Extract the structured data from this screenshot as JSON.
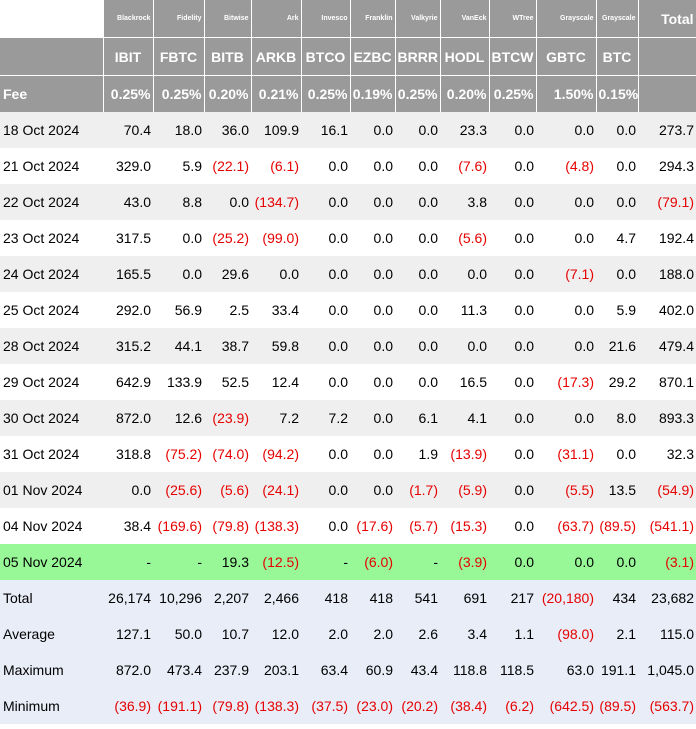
{
  "issuers": [
    "Blackrock",
    "Fidelity",
    "Bitwise",
    "Ark",
    "Invesco",
    "Franklin",
    "Valkyrie",
    "VanEck",
    "WTree",
    "Grayscale",
    "Grayscale"
  ],
  "total_header": "Total",
  "tickers": [
    "IBIT",
    "FBTC",
    "BITB",
    "ARKB",
    "BTCO",
    "EZBC",
    "BRRR",
    "HODL",
    "BTCW",
    "GBTC",
    "BTC"
  ],
  "fee_label": "Fee",
  "fees": [
    "0.25%",
    "0.25%",
    "0.20%",
    "0.21%",
    "0.25%",
    "0.19%",
    "0.25%",
    "0.20%",
    "0.25%",
    "1.50%",
    "0.15%"
  ],
  "rows": [
    {
      "date": "18 Oct 2024",
      "values": [
        "70.4",
        "18.0",
        "36.0",
        "109.9",
        "16.1",
        "0.0",
        "0.0",
        "23.3",
        "0.0",
        "0.0",
        "0.0"
      ],
      "total": "273.7"
    },
    {
      "date": "21 Oct 2024",
      "values": [
        "329.0",
        "5.9",
        "(22.1)",
        "(6.1)",
        "0.0",
        "0.0",
        "0.0",
        "(7.6)",
        "0.0",
        "(4.8)",
        "0.0"
      ],
      "total": "294.3"
    },
    {
      "date": "22 Oct 2024",
      "values": [
        "43.0",
        "8.8",
        "0.0",
        "(134.7)",
        "0.0",
        "0.0",
        "0.0",
        "3.8",
        "0.0",
        "0.0",
        "0.0"
      ],
      "total": "(79.1)"
    },
    {
      "date": "23 Oct 2024",
      "values": [
        "317.5",
        "0.0",
        "(25.2)",
        "(99.0)",
        "0.0",
        "0.0",
        "0.0",
        "(5.6)",
        "0.0",
        "0.0",
        "4.7"
      ],
      "total": "192.4"
    },
    {
      "date": "24 Oct 2024",
      "values": [
        "165.5",
        "0.0",
        "29.6",
        "0.0",
        "0.0",
        "0.0",
        "0.0",
        "0.0",
        "0.0",
        "(7.1)",
        "0.0"
      ],
      "total": "188.0"
    },
    {
      "date": "25 Oct 2024",
      "values": [
        "292.0",
        "56.9",
        "2.5",
        "33.4",
        "0.0",
        "0.0",
        "0.0",
        "11.3",
        "0.0",
        "0.0",
        "5.9"
      ],
      "total": "402.0"
    },
    {
      "date": "28 Oct 2024",
      "values": [
        "315.2",
        "44.1",
        "38.7",
        "59.8",
        "0.0",
        "0.0",
        "0.0",
        "0.0",
        "0.0",
        "0.0",
        "21.6"
      ],
      "total": "479.4"
    },
    {
      "date": "29 Oct 2024",
      "values": [
        "642.9",
        "133.9",
        "52.5",
        "12.4",
        "0.0",
        "0.0",
        "0.0",
        "16.5",
        "0.0",
        "(17.3)",
        "29.2"
      ],
      "total": "870.1"
    },
    {
      "date": "30 Oct 2024",
      "values": [
        "872.0",
        "12.6",
        "(23.9)",
        "7.2",
        "7.2",
        "0.0",
        "6.1",
        "4.1",
        "0.0",
        "0.0",
        "8.0"
      ],
      "total": "893.3"
    },
    {
      "date": "31 Oct 2024",
      "values": [
        "318.8",
        "(75.2)",
        "(74.0)",
        "(94.2)",
        "0.0",
        "0.0",
        "1.9",
        "(13.9)",
        "0.0",
        "(31.1)",
        "0.0"
      ],
      "total": "32.3"
    },
    {
      "date": "01 Nov 2024",
      "values": [
        "0.0",
        "(25.6)",
        "(5.6)",
        "(24.1)",
        "0.0",
        "0.0",
        "(1.7)",
        "(5.9)",
        "0.0",
        "(5.5)",
        "13.5"
      ],
      "total": "(54.9)"
    },
    {
      "date": "04 Nov 2024",
      "values": [
        "38.4",
        "(169.6)",
        "(79.8)",
        "(138.3)",
        "0.0",
        "(17.6)",
        "(5.7)",
        "(15.3)",
        "0.0",
        "(63.7)",
        "(89.5)"
      ],
      "total": "(541.1)"
    },
    {
      "date": "05 Nov 2024",
      "values": [
        "-",
        "-",
        "19.3",
        "(12.5)",
        "-",
        "(6.0)",
        "-",
        "(3.9)",
        "0.0",
        "0.0",
        "0.0"
      ],
      "total": "(3.1)",
      "highlight": true
    }
  ],
  "summary": [
    {
      "label": "Total",
      "values": [
        "26,174",
        "10,296",
        "2,207",
        "2,466",
        "418",
        "418",
        "541",
        "691",
        "217",
        "(20,180)",
        "434"
      ],
      "total": "23,682"
    },
    {
      "label": "Average",
      "values": [
        "127.1",
        "50.0",
        "10.7",
        "12.0",
        "2.0",
        "2.0",
        "2.6",
        "3.4",
        "1.1",
        "(98.0)",
        "2.1"
      ],
      "total": "115.0"
    },
    {
      "label": "Maximum",
      "values": [
        "872.0",
        "473.4",
        "237.9",
        "203.1",
        "63.4",
        "60.9",
        "43.4",
        "118.8",
        "118.5",
        "63.0",
        "191.1"
      ],
      "total": "1,045.0"
    },
    {
      "label": "Minimum",
      "values": [
        "(36.9)",
        "(191.1)",
        "(79.8)",
        "(138.3)",
        "(37.5)",
        "(23.0)",
        "(20.2)",
        "(38.4)",
        "(6.2)",
        "(642.5)",
        "(89.5)"
      ],
      "total": "(563.7)"
    }
  ],
  "colors": {
    "header_bg": "#9a9a9a",
    "row_alt": "#efefef",
    "highlight": "#98f898",
    "summary_bg": "#e8edf8",
    "negative": "#e60000"
  }
}
